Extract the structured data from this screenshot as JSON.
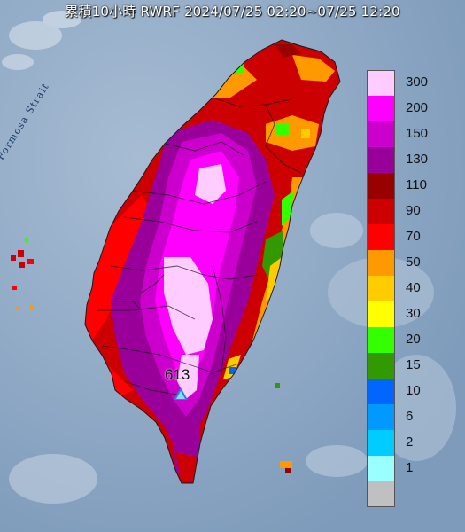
{
  "title": "累積10小時 RWRF 2024/07/25 02:20~07/25 12:20",
  "strait_label": "Formosa Strait",
  "peak": {
    "value": "613"
  },
  "legend": [
    {
      "label": "300",
      "color": "#ffccff"
    },
    {
      "label": "200",
      "color": "#ff00ff"
    },
    {
      "label": "150",
      "color": "#cc00cc"
    },
    {
      "label": "130",
      "color": "#990099"
    },
    {
      "label": "110",
      "color": "#990000"
    },
    {
      "label": "90",
      "color": "#cc0000"
    },
    {
      "label": "70",
      "color": "#ff0000"
    },
    {
      "label": "50",
      "color": "#ff9900"
    },
    {
      "label": "40",
      "color": "#ffcc00"
    },
    {
      "label": "30",
      "color": "#ffff00"
    },
    {
      "label": "20",
      "color": "#33ff00"
    },
    {
      "label": "15",
      "color": "#339900"
    },
    {
      "label": "10",
      "color": "#0066ff"
    },
    {
      "label": "6",
      "color": "#0099ff"
    },
    {
      "label": "2",
      "color": "#00ccff"
    },
    {
      "label": "1",
      "color": "#99ffff"
    },
    {
      "label": "",
      "color": "#c0c0c0"
    }
  ]
}
